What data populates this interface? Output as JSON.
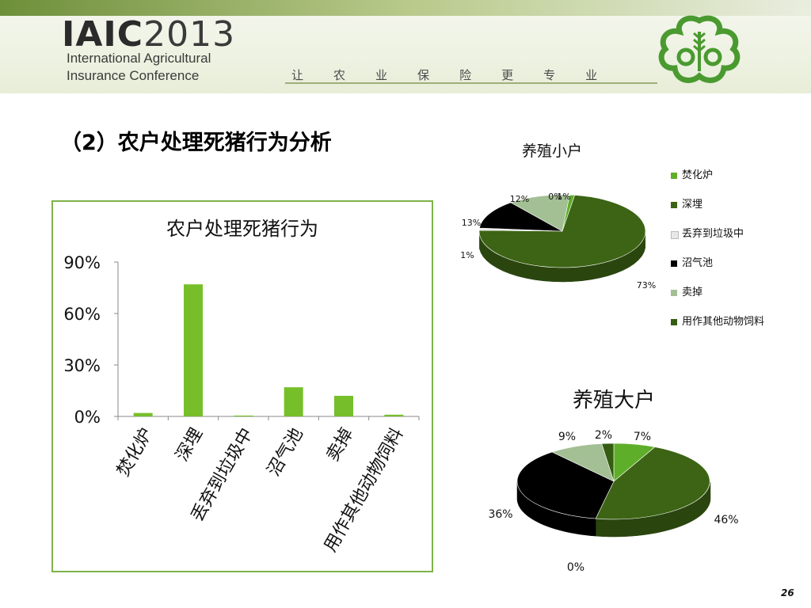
{
  "header": {
    "logo_text": "IAIC",
    "logo_year": "2013",
    "conference_line1": "International Agricultural",
    "conference_line2": "Insurance Conference",
    "slogan": [
      "让",
      "农",
      "业",
      "保",
      "险",
      "更",
      "专",
      "业"
    ]
  },
  "slide": {
    "title": "（2）农户处理死猪行为分析",
    "page_number": "26"
  },
  "colors": {
    "bar": "#76bf2a",
    "incinerate": "#5fae2a",
    "bury": "#3c6414",
    "discard": "#e8e8e8",
    "biogas": "#000000",
    "sell": "#a3bf94",
    "feed": "#345d12",
    "frame": "#7fb24a"
  },
  "chart_data": [
    {
      "type": "bar",
      "title": "农户处理死猪行为",
      "categories": [
        "焚化炉",
        "深埋",
        "丢弃到垃圾中",
        "沼气池",
        "卖掉",
        "用作其他动物饲料"
      ],
      "values": [
        2,
        77,
        0.5,
        17,
        12,
        1
      ],
      "ylim": [
        0,
        90
      ],
      "yticks": [
        0,
        30,
        60,
        90
      ],
      "yticklabels": [
        "0%",
        "30%",
        "60%",
        "90%"
      ],
      "unit": "%",
      "grid": false
    },
    {
      "type": "pie",
      "title": "养殖小户",
      "labels": [
        "焚化炉",
        "深埋",
        "丢弃到垃圾中",
        "沼气池",
        "卖掉",
        "用作其他动物饲料"
      ],
      "values": [
        1,
        73,
        1,
        13,
        12,
        0
      ],
      "data_labels": [
        "1%",
        "73%",
        "1%",
        "13%",
        "12%",
        "0%"
      ],
      "legend": "right",
      "legend_entries": [
        "焚化炉",
        "深埋",
        "丢弃到垃圾中",
        "沼气池",
        "卖掉",
        "用作其他动物饲料"
      ]
    },
    {
      "type": "pie",
      "title": "养殖大户",
      "labels": [
        "焚化炉",
        "深埋",
        "丢弃到垃圾中",
        "沼气池",
        "卖掉",
        "用作其他动物饲料"
      ],
      "values": [
        7,
        46,
        0,
        36,
        9,
        2
      ],
      "data_labels": [
        "7%",
        "46%",
        "0%",
        "36%",
        "9%",
        "2%"
      ]
    }
  ]
}
